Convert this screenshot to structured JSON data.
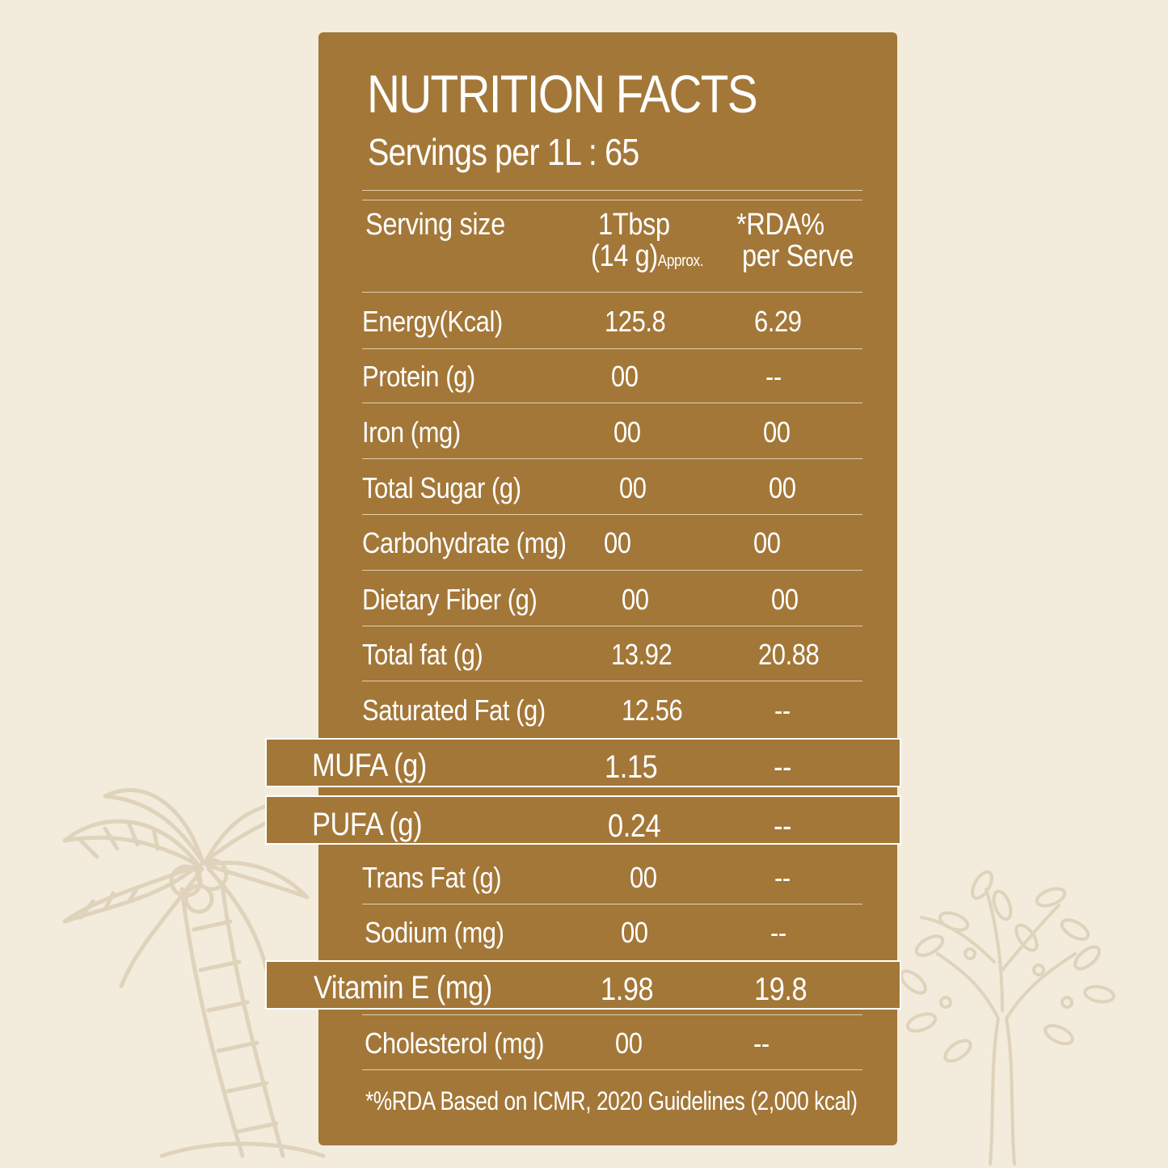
{
  "title": "NUTRITION FACTS",
  "servings": "Servings per 1L : 65",
  "header": {
    "serving_label": "Serving size",
    "amount_line1": "1Tbsp",
    "amount_line2": "(14 g)",
    "amount_approx": "Approx.",
    "rda_line1": "*RDA%",
    "rda_line2": "per Serve"
  },
  "rows": [
    {
      "label": "Energy(Kcal)",
      "value": "125.8",
      "rda": "6.29"
    },
    {
      "label": "Protein (g)",
      "value": "00",
      "rda": "--"
    },
    {
      "label": "Iron (mg)",
      "value": "00",
      "rda": "00"
    },
    {
      "label": "Total Sugar (g)",
      "value": "00",
      "rda": "00"
    },
    {
      "label": "Carbohydrate (mg)",
      "value": "00",
      "rda": "00"
    },
    {
      "label": "Dietary Fiber (g)",
      "value": "00",
      "rda": "00"
    },
    {
      "label": "Total fat (g)",
      "value": "13.92",
      "rda": "20.88"
    },
    {
      "label": "Saturated Fat (g)",
      "value": "12.56",
      "rda": "--"
    },
    {
      "label": "MUFA (g)",
      "value": "1.15",
      "rda": "--"
    },
    {
      "label": "PUFA (g)",
      "value": "0.24",
      "rda": "--"
    },
    {
      "label": "Trans Fat (g)",
      "value": "00",
      "rda": "--"
    },
    {
      "label": "Sodium (mg)",
      "value": "00",
      "rda": "--"
    },
    {
      "label": "Vitamin E (mg)",
      "value": "1.98",
      "rda": "19.8"
    },
    {
      "label": "Cholesterol (mg)",
      "value": "00",
      "rda": "--"
    }
  ],
  "footnote": "*%RDA Based on ICMR, 2020 Guidelines (2,000 kcal)",
  "colors": {
    "background": "#f3ebdc",
    "panel": "#a37738",
    "text": "#ffffff",
    "illustration": "#e0d3bb"
  },
  "illustrations": [
    "coconut-palm-illustration",
    "olive-tree-illustration"
  ]
}
